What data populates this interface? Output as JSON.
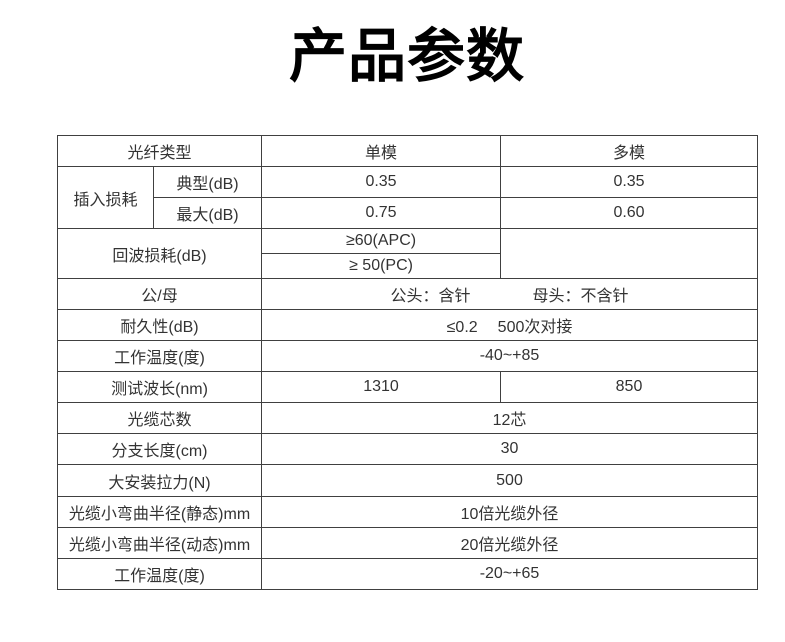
{
  "page": {
    "title": "产品参数"
  },
  "colors": {
    "background": "#ffffff",
    "title_text": "#000000",
    "body_text": "#333333",
    "table_border": "#404040"
  },
  "table": {
    "header": {
      "fiber_type_label": "光纤类型",
      "singlemode_label": "单模",
      "multimode_label": "多模"
    },
    "insertion_loss": {
      "label": "插入损耗",
      "typical": {
        "label": "典型(dB)",
        "singlemode": "0.35",
        "multimode": "0.35"
      },
      "max": {
        "label": "最大(dB)",
        "singlemode": "0.75",
        "multimode": "0.60"
      }
    },
    "return_loss": {
      "label": "回波损耗(dB)",
      "apc_value": "≥60(APC)",
      "pc_value": "≥ 50(PC)",
      "multimode_value": ""
    },
    "gender": {
      "label": "公/母",
      "male_value": "公头：含针",
      "female_value": "母头：不含针"
    },
    "durability": {
      "label": "耐久性(dB)",
      "limit_value": "≤0.2",
      "cycles_value": "500次对接"
    },
    "operating_temp": {
      "label": "工作温度(度)",
      "value": "-40~+85"
    },
    "test_wavelength": {
      "label": "测试波长(nm)",
      "singlemode": "1310",
      "multimode": "850"
    },
    "fiber_count": {
      "label": "光缆芯数",
      "value": "12芯"
    },
    "branch_length": {
      "label": "分支长度(cm)",
      "value": "30"
    },
    "install_tension": {
      "label": "大安装拉力(N)",
      "value": "500"
    },
    "bend_radius_static": {
      "label": "光缆小弯曲半径(静态)mm",
      "value": "10倍光缆外径"
    },
    "bend_radius_dynamic": {
      "label": "光缆小弯曲半径(动态)mm",
      "value": "20倍光缆外径"
    },
    "storage_temp": {
      "label": "工作温度(度)",
      "value": "-20~+65"
    }
  }
}
